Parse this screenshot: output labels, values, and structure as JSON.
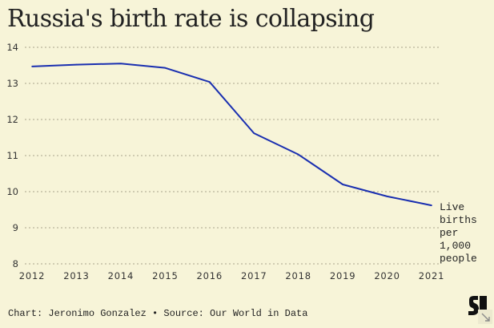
{
  "header": {
    "title": "Russia's birth rate is collapsing"
  },
  "chart_data": {
    "type": "line",
    "title": "Russia's birth rate is collapsing",
    "x": [
      2012,
      2013,
      2014,
      2015,
      2016,
      2017,
      2018,
      2019,
      2020,
      2021
    ],
    "series": [
      {
        "name": "Live births per 1,000 people",
        "values": [
          13.47,
          13.52,
          13.55,
          13.43,
          13.04,
          11.62,
          11.03,
          10.2,
          9.87,
          9.62
        ],
        "color": "#1a2fb0"
      }
    ],
    "ylabel_lines": [
      "Live",
      "births",
      "per",
      "1,000",
      "people"
    ],
    "yticks": [
      "8",
      "9",
      "10",
      "11",
      "12",
      "13",
      "14"
    ],
    "xticks": [
      "2012",
      "2013",
      "2014",
      "2015",
      "2016",
      "2017",
      "2018",
      "2019",
      "2020",
      "2021"
    ],
    "ylim": [
      8,
      14
    ],
    "xlim": [
      2012,
      2021
    ],
    "grid": true,
    "grid_color": "#a9a58c"
  },
  "footer": {
    "credit": "Chart: Jeronimo Gonzalez • Source: Our World in Data"
  },
  "logo": {
    "name": "S"
  },
  "icons": {
    "logo": "publisher-logo-icon",
    "resize": "resize-arrow-icon"
  }
}
